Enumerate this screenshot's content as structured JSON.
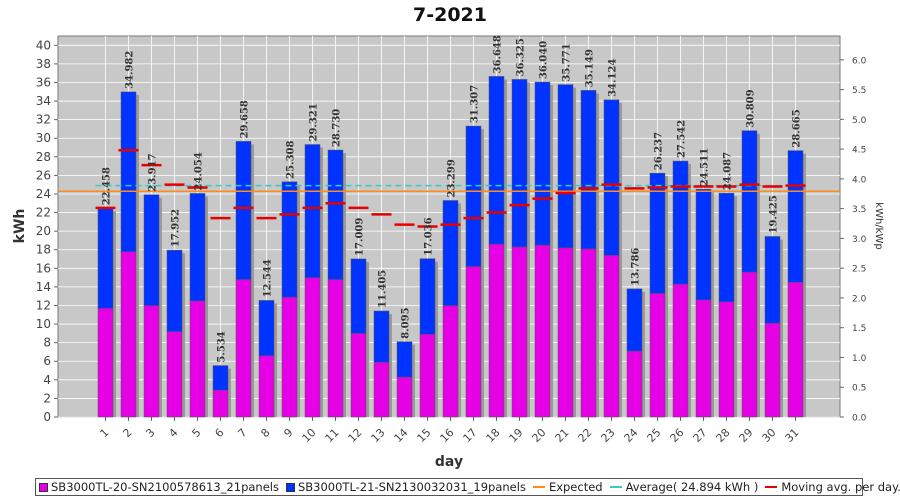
{
  "chart_data": {
    "type": "bar",
    "title": "7-2021",
    "xlabel": "day",
    "ylabel": "kWh",
    "y2label": "kWh/kWp",
    "ylim": [
      0,
      41
    ],
    "y2lim": [
      0,
      6.4
    ],
    "yticks": [
      0,
      2,
      4,
      6,
      8,
      10,
      12,
      14,
      16,
      18,
      20,
      22,
      24,
      26,
      28,
      30,
      32,
      34,
      36,
      38,
      40
    ],
    "y2ticks": [
      "0.0",
      "0.5",
      "1.0",
      "1.5",
      "2.0",
      "2.5",
      "3.0",
      "3.5",
      "4.0",
      "4.5",
      "5.0",
      "5.5",
      "6.0"
    ],
    "grid": true,
    "legend_position": "bottom",
    "categories": [
      "1",
      "2",
      "3",
      "4",
      "5",
      "6",
      "7",
      "8",
      "9",
      "10",
      "11",
      "12",
      "13",
      "14",
      "15",
      "16",
      "17",
      "18",
      "19",
      "20",
      "21",
      "22",
      "23",
      "24",
      "25",
      "26",
      "27",
      "28",
      "29",
      "30",
      "31"
    ],
    "totals_labels": [
      "22.458",
      "34.982",
      "23.917",
      "17.952",
      "24.054",
      "5.534",
      "29.658",
      "12.544",
      "25.308",
      "29.321",
      "28.730",
      "17.009",
      "11.405",
      "8.095",
      "17.036",
      "23.299",
      "31.307",
      "36.648",
      "36.325",
      "36.040",
      "35.771",
      "35.149",
      "34.124",
      "13.786",
      "26.237",
      "27.542",
      "24.511",
      "24.087",
      "30.809",
      "19.425",
      "28.665"
    ],
    "series": [
      {
        "name": "SB3000TL-20-SN2100578613_21panels",
        "color": "#e600e6",
        "values": [
          11.7,
          17.8,
          12.0,
          9.2,
          12.5,
          2.9,
          14.8,
          6.6,
          12.9,
          15.0,
          14.8,
          9.0,
          5.9,
          4.3,
          8.9,
          12.0,
          16.2,
          18.6,
          18.3,
          18.5,
          18.2,
          18.1,
          17.4,
          7.1,
          13.3,
          14.3,
          12.6,
          12.4,
          15.6,
          10.1,
          14.5
        ]
      },
      {
        "name": "SB3000TL-21-SN2130032031_19panels",
        "color": "#0033ff",
        "values": [
          10.758,
          17.182,
          11.917,
          8.752,
          11.554,
          2.634,
          14.858,
          5.944,
          12.408,
          14.321,
          13.93,
          8.009,
          5.505,
          3.795,
          8.136,
          11.299,
          15.107,
          18.048,
          18.025,
          17.54,
          17.571,
          17.049,
          16.724,
          6.686,
          12.937,
          13.242,
          11.911,
          11.687,
          15.209,
          9.325,
          14.165
        ]
      }
    ],
    "expected": {
      "name": "Expected",
      "color": "#ff8c1a",
      "value": 24.3
    },
    "average": {
      "name": "Average",
      "label": "Average( 24.894 kWh )",
      "color": "#33cccc",
      "value": 24.894
    },
    "moving_avg": {
      "name": "Moving avg. per day.",
      "color": "#e60000",
      "values": [
        22.5,
        28.7,
        27.1,
        25.0,
        24.7,
        21.4,
        22.5,
        21.4,
        21.8,
        22.5,
        23.0,
        22.5,
        21.8,
        20.7,
        20.5,
        20.7,
        21.4,
        22.0,
        22.8,
        23.5,
        24.1,
        24.6,
        25.0,
        24.6,
        24.7,
        24.8,
        24.8,
        24.8,
        25.0,
        24.8,
        24.9
      ]
    }
  },
  "legend": {
    "s1": "SB3000TL-20-SN2100578613_21panels",
    "s2": "SB3000TL-21-SN2130032031_19panels",
    "expected": "Expected",
    "average": "Average( 24.894 kWh )",
    "moving": "Moving avg. per day."
  }
}
